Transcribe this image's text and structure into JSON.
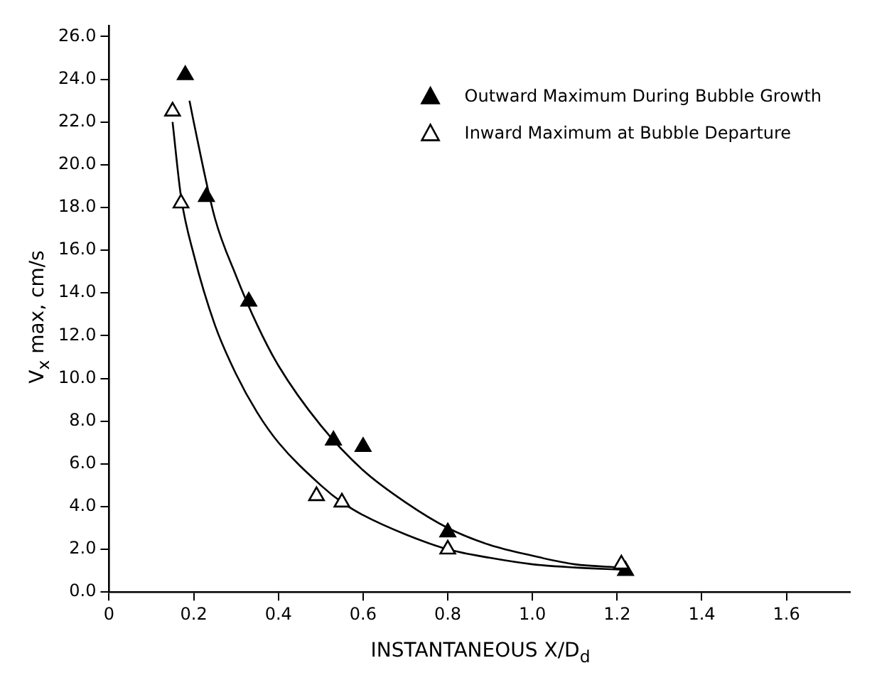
{
  "chart_data": {
    "type": "scatter",
    "xlabel": "INSTANTANEOUS X/D$_{d}$",
    "ylabel": "V$_{x}$ max, cm/s",
    "xlim": [
      0,
      1.75
    ],
    "xticks": [
      0,
      0.2,
      0.4,
      0.6,
      0.8,
      {
        "value": 1,
        "label": "1.0"
      },
      1.2,
      1.4,
      1.6
    ],
    "ylim": [
      0,
      26.5
    ],
    "yticks": [
      {
        "value": 0,
        "label": "0.0"
      },
      {
        "value": 2,
        "label": "2.0"
      },
      {
        "value": 4,
        "label": "4.0"
      },
      {
        "value": 6,
        "label": "6.0"
      },
      {
        "value": 8,
        "label": "8.0"
      },
      {
        "value": 10,
        "label": "10.0"
      },
      {
        "value": 12,
        "label": "12.0"
      },
      {
        "value": 14,
        "label": "14.0"
      },
      {
        "value": 16,
        "label": "16.0"
      },
      {
        "value": 18,
        "label": "18.0"
      },
      {
        "value": 20,
        "label": "20.0"
      },
      {
        "value": 22,
        "label": "22.0"
      },
      {
        "value": 24,
        "label": "24.0"
      },
      {
        "value": 26,
        "label": "26.0"
      }
    ],
    "grid": false,
    "legend": "top right",
    "series": [
      {
        "name": "Outward Maximum During Bubble Growth",
        "color": "#000000",
        "marker": "triangle",
        "x": [
          0.18,
          0.23,
          0.33,
          0.53,
          0.6,
          0.8,
          1.22
        ],
        "values": [
          24.2,
          18.5,
          13.6,
          7.1,
          6.8,
          2.8,
          1.0
        ]
      },
      {
        "name": "Inward Maximum at Bubble Departure",
        "color": "#ffffff",
        "marker": "triangle",
        "x": [
          0.15,
          0.17,
          0.49,
          0.55,
          0.8,
          1.21
        ],
        "values": [
          22.5,
          18.2,
          4.5,
          4.2,
          2.0,
          1.3
        ]
      },
      {
        "type": "line",
        "color": "#000000",
        "marker": "none",
        "x": [
          0.19,
          0.2,
          0.25,
          0.3,
          0.35,
          0.4,
          0.5,
          0.6,
          0.7,
          0.8,
          0.9,
          1.0,
          1.1,
          1.21
        ],
        "values": [
          23.0,
          22.0,
          17.5,
          14.8,
          12.5,
          10.6,
          7.8,
          5.7,
          4.2,
          3.0,
          2.2,
          1.7,
          1.3,
          1.15
        ]
      },
      {
        "type": "line",
        "color": "#000000",
        "marker": "none",
        "x": [
          0.15,
          0.17,
          0.2,
          0.25,
          0.3,
          0.35,
          0.4,
          0.5,
          0.55,
          0.6,
          0.7,
          0.8,
          0.9,
          1.0,
          1.1,
          1.21
        ],
        "values": [
          22.0,
          18.5,
          15.8,
          12.5,
          10.2,
          8.4,
          7.0,
          5.0,
          4.2,
          3.6,
          2.7,
          2.0,
          1.6,
          1.3,
          1.15,
          1.05
        ]
      }
    ]
  }
}
